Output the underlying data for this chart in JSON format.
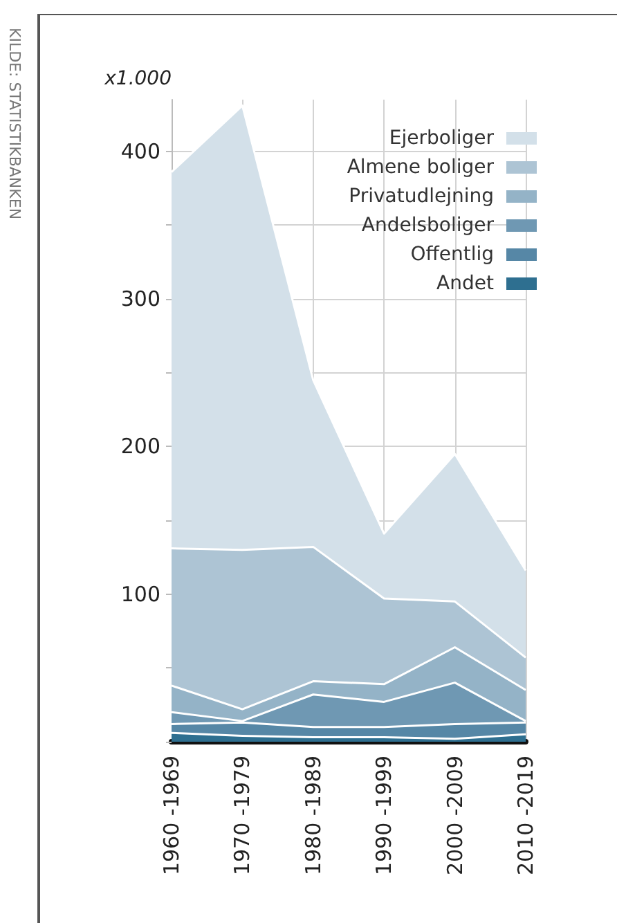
{
  "chart_data": {
    "type": "area",
    "stacked": true,
    "ylabel": "x1.000",
    "annotations": [
      "KILDE: STATISTIKBANKEN"
    ],
    "categories": [
      "1960 -1969",
      "1970 -1979",
      "1980 -1989",
      "1990 -1999",
      "2000 -2009",
      "2010 -2019"
    ],
    "series": [
      {
        "name": "Andet",
        "color": "#2e6f90",
        "values": [
          6,
          4,
          3,
          3,
          2,
          5
        ]
      },
      {
        "name": "Offentlig",
        "color": "#5687a6",
        "values": [
          6,
          9,
          7,
          7,
          10,
          8
        ]
      },
      {
        "name": "Andelsboliger",
        "color": "#6f98b3",
        "values": [
          8,
          1,
          22,
          17,
          28,
          1
        ]
      },
      {
        "name": "Privatudlejning",
        "color": "#94b3c7",
        "values": [
          18,
          8,
          9,
          12,
          24,
          21
        ]
      },
      {
        "name": "Almene boliger",
        "color": "#adc4d4",
        "values": [
          93,
          108,
          91,
          58,
          31,
          22
        ]
      },
      {
        "name": "Ejerboliger",
        "color": "#d3e0e9",
        "values": [
          255,
          301,
          113,
          44,
          100,
          59
        ]
      }
    ],
    "ylim": [
      0,
      435
    ],
    "yticks": [
      {
        "value": 0,
        "label": null
      },
      {
        "value": 50,
        "label": null
      },
      100,
      {
        "value": 150,
        "label": null
      },
      200,
      {
        "value": 250,
        "label": null
      },
      300,
      {
        "value": 350,
        "label": null
      },
      400
    ],
    "grid": true,
    "legend": "top right"
  }
}
